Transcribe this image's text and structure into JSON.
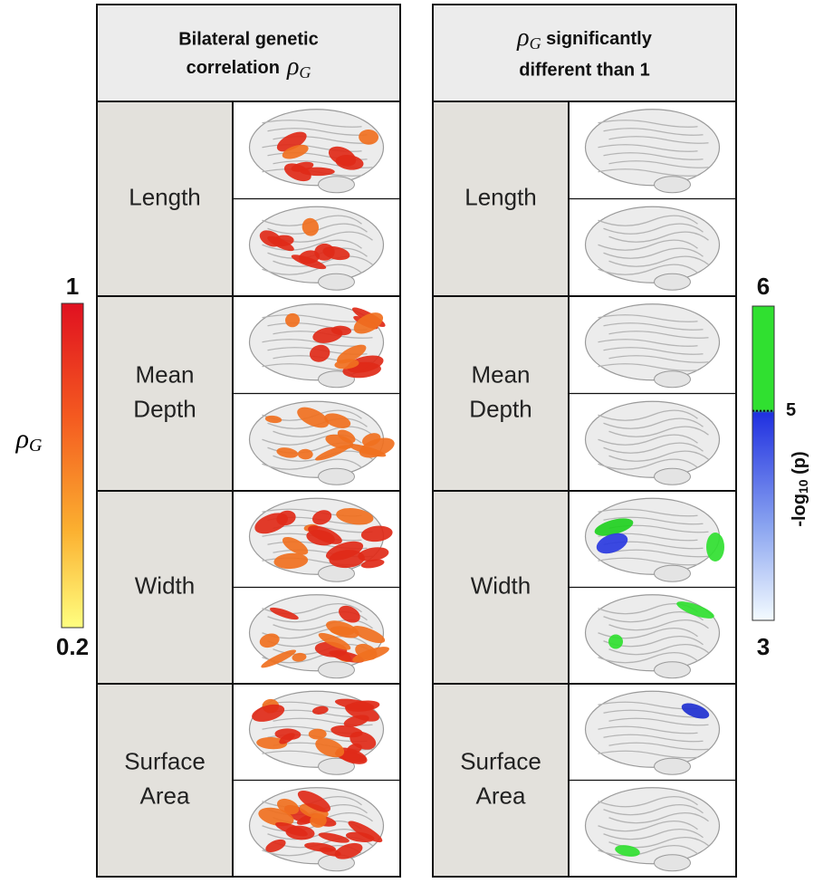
{
  "panels": [
    {
      "header": {
        "lines": [
          "Bilateral genetic",
          "correlation"
        ],
        "symbol": "ρ",
        "subscript": "G"
      },
      "rows": [
        {
          "label": [
            "Length"
          ]
        },
        {
          "label": [
            "Mean",
            "Depth"
          ]
        },
        {
          "label": [
            "Width"
          ]
        },
        {
          "label": [
            "Surface",
            "Area"
          ]
        }
      ]
    },
    {
      "header": {
        "symbol": "ρ",
        "subscript": "G",
        "lines": [
          " significantly",
          "different than 1"
        ]
      },
      "rows": [
        {
          "label": [
            "Length"
          ]
        },
        {
          "label": [
            "Mean",
            "Depth"
          ]
        },
        {
          "label": [
            "Width"
          ]
        },
        {
          "label": [
            "Surface",
            "Area"
          ]
        }
      ]
    }
  ],
  "colorbars": [
    {
      "max": 1,
      "min": 0.2,
      "symbol": "ρ",
      "subscript": "G"
    },
    {
      "max": 6,
      "min": 3,
      "threshold": 5,
      "label": {
        "text": "-log",
        "sub": "10",
        "tail": " (p)"
      }
    }
  ]
}
